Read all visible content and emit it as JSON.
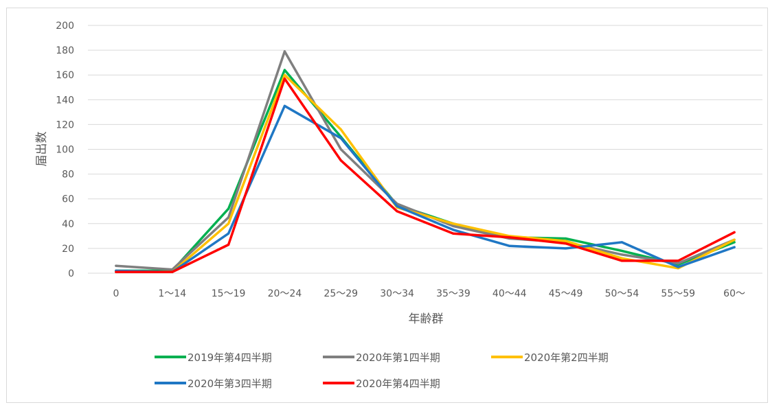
{
  "chart_data": {
    "type": "line",
    "xlabel": "年齢群",
    "ylabel": "届出数",
    "ylim": [
      0,
      200
    ],
    "yticks": [
      0,
      20,
      40,
      60,
      80,
      100,
      120,
      140,
      160,
      180,
      200
    ],
    "grid": true,
    "legend_position": "bottom",
    "categories": [
      "0",
      "1〜14",
      "15〜19",
      "20〜24",
      "25〜29",
      "30〜34",
      "35〜39",
      "40〜44",
      "45〜49",
      "50〜54",
      "55〜59",
      "60〜"
    ],
    "series": [
      {
        "name": "2019年第4四半期",
        "color": "#00b050",
        "values": [
          2,
          2,
          52,
          164,
          110,
          55,
          40,
          29,
          28,
          18,
          7,
          25
        ]
      },
      {
        "name": "2020年第1四半期",
        "color": "#7f7f7f",
        "values": [
          6,
          3,
          45,
          179,
          100,
          56,
          38,
          28,
          25,
          15,
          8,
          27
        ]
      },
      {
        "name": "2020年第2四半期",
        "color": "#ffc000",
        "values": [
          2,
          1,
          40,
          160,
          116,
          53,
          40,
          30,
          26,
          12,
          4,
          27
        ]
      },
      {
        "name": "2020年第3四半期",
        "color": "#1f77c4",
        "values": [
          2,
          1,
          32,
          135,
          109,
          54,
          35,
          22,
          20,
          25,
          5,
          21
        ]
      },
      {
        "name": "2020年第4四半期",
        "color": "#ff0000",
        "values": [
          1,
          1,
          23,
          157,
          91,
          50,
          32,
          29,
          24,
          10,
          10,
          33
        ]
      }
    ]
  }
}
